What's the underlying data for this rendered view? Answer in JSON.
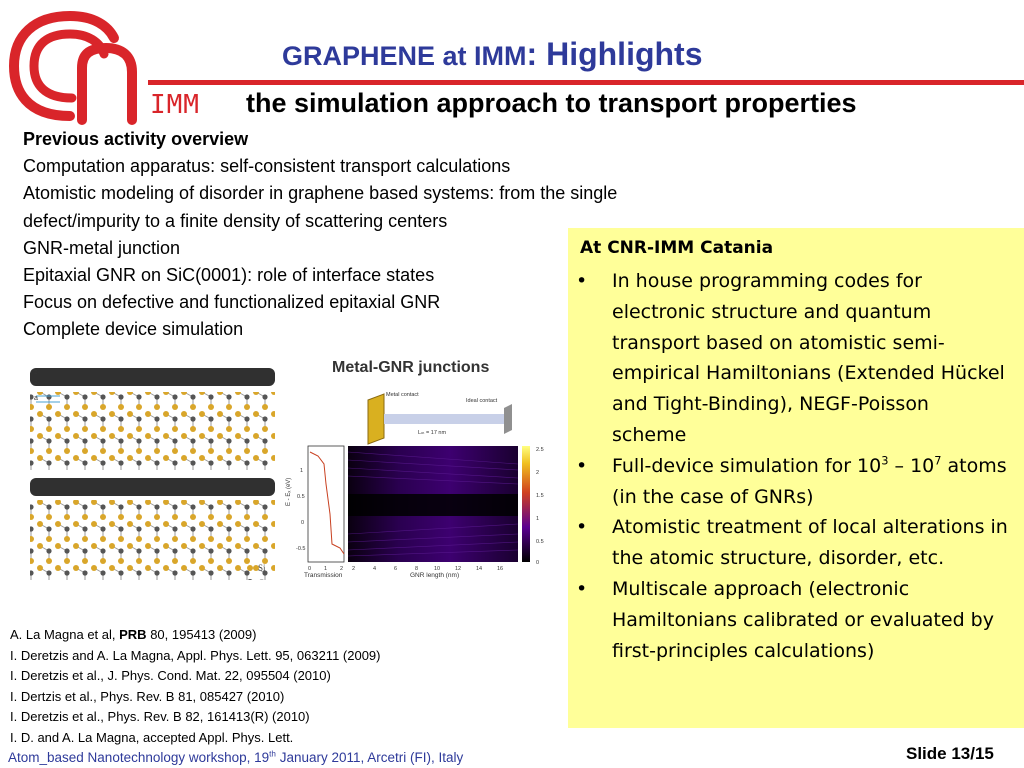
{
  "header": {
    "title_part1": "GRAPHENE at IMM",
    "title_part2": ": Highlights",
    "subtitle": "the simulation approach to transport properties",
    "logo_text": "IMM"
  },
  "previous_activity": {
    "heading": "Previous activity overview",
    "lines": [
      "Computation apparatus: self-consistent transport calculations",
      "Atomistic modeling of disorder in graphene based systems: from the single",
      "defect/impurity to a finite density of scattering centers",
      "GNR-metal junction",
      "Epitaxial GNR on SiC(0001): role of interface states",
      "Focus on defective and functionalized epitaxial GNR",
      "Complete device simulation"
    ]
  },
  "catania_box": {
    "title": "At CNR-IMM Catania",
    "bullet_glyph": "•",
    "item1": "In house programming codes for electronic structure and quantum transport based on atomistic semi-empirical Hamiltonians (Extended Hückel and Tight-Binding), NEGF-Poisson scheme",
    "item2_pre": "Full-device simulation for 10",
    "item2_exp1": "3",
    "item2_mid": " – 10",
    "item2_exp2": "7",
    "item2_post": " atoms (in the case of GNRs)",
    "item3": "Atomistic treatment of local alterations in the atomic structure, disorder, etc.",
    "item4": "Multiscale approach (electronic Hamiltonians calibrated or evaluated by first-principles calculations)"
  },
  "figure": {
    "title": "Metal-GNR junctions",
    "metal_contact": "Metal contact",
    "ideal_contact": "Ideal contact",
    "length_label": "Lₘ = 17 nm",
    "transmission_label": "Transmission",
    "xlabel": "GNR length (nm)",
    "ylabel": "E - Eₓ (eV)",
    "y_ticks": [
      "1",
      "0.5",
      "0",
      "-0.5"
    ],
    "x_ticks_left": [
      "0",
      "1",
      "2"
    ],
    "x_ticks_right": [
      "2",
      "4",
      "6",
      "8",
      "10",
      "12",
      "14",
      "16"
    ],
    "colorbar_ticks": [
      "2.5",
      "2",
      "1.5",
      "1",
      "0.5",
      "0"
    ],
    "atom_labels": [
      "Si",
      "C",
      "H"
    ],
    "layer_labels": [
      "z₁",
      "z₀",
      "a"
    ]
  },
  "references": {
    "ref1_pre": "A. La Magna et al, ",
    "ref1_bold": "PRB",
    "ref1_post": " 80, 195413 (2009)",
    "ref2": "I. Deretzis and A. La Magna, Appl. Phys. Lett. 95, 063211  (2009)",
    "ref3": "I. Deretzis et al., J. Phys. Cond. Mat. 22, 095504 (2010)",
    "ref4": "I. Dertzis et al., Phys. Rev. B 81, 085427 (2010)",
    "ref5": "I. Deretzis et al., Phys. Rev. B 82, 161413(R) (2010)",
    "ref6": "I. D. and A. La Magna, accepted Appl. Phys. Lett."
  },
  "footer": {
    "workshop_pre": "Atom_based Nanotechnology workshop, 19",
    "workshop_sup": "th",
    "workshop_post": " January 2011, Arcetri (FI), Italy",
    "slide_label": "Slide 13/15"
  },
  "colors": {
    "title_blue": "#2e3a9a",
    "brand_red": "#d9252a",
    "box_yellow": "#ffff99"
  }
}
